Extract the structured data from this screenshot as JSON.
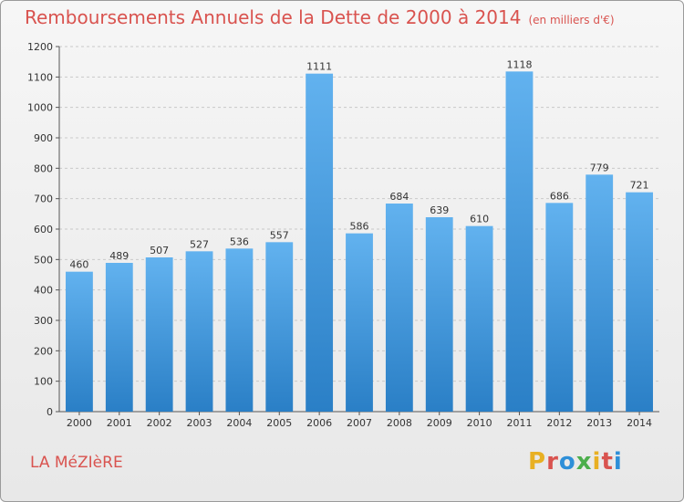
{
  "chart_data": {
    "type": "bar",
    "title": "Remboursements Annuels de la Dette de 2000 à 2014",
    "subtitle": "(en milliers d'€)",
    "categories": [
      "2000",
      "2001",
      "2002",
      "2003",
      "2004",
      "2005",
      "2006",
      "2007",
      "2008",
      "2009",
      "2010",
      "2011",
      "2012",
      "2013",
      "2014"
    ],
    "values": [
      460,
      489,
      507,
      527,
      536,
      557,
      1111,
      586,
      684,
      639,
      610,
      1118,
      686,
      779,
      721
    ],
    "ylim": [
      0,
      1200
    ],
    "yticks": [
      0,
      100,
      200,
      300,
      400,
      500,
      600,
      700,
      800,
      900,
      1000,
      1100,
      1200
    ],
    "grid": true,
    "bar_color": "#4a9fe0"
  },
  "footer": {
    "town": "LA MéZIèRE",
    "logo": "Proxiti"
  },
  "logo_colors": [
    "#e8b023",
    "#d9534f",
    "#2e8fd8",
    "#4cae4c",
    "#e8b023",
    "#d9534f",
    "#2e8fd8"
  ]
}
